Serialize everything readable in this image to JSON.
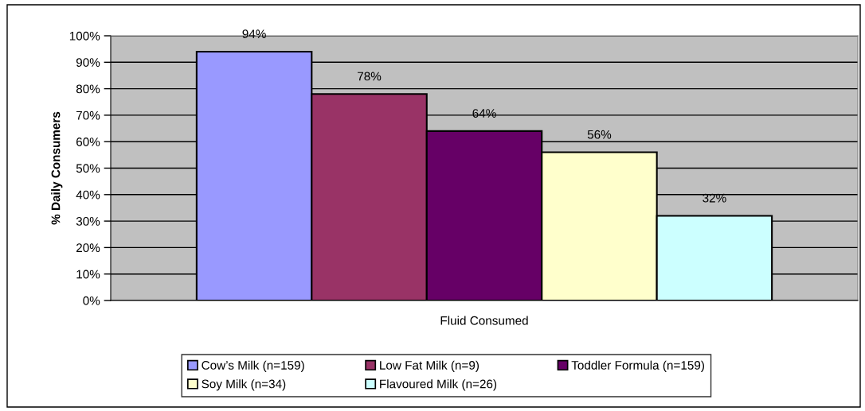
{
  "chart_data": {
    "type": "bar",
    "categories": [
      null
    ],
    "xlabel": "Fluid Consumed",
    "ylabel": "% Daily Consumers",
    "series": [
      {
        "name": "Cow’s Milk (n=159)",
        "color": "#9999ff",
        "values": [
          94
        ],
        "value_labels": [
          "94%"
        ]
      },
      {
        "name": "Low Fat Milk (n=9)",
        "color": "#993366",
        "values": [
          78
        ],
        "value_labels": [
          "78%"
        ]
      },
      {
        "name": "Toddler Formula (n=159)",
        "color": "#660066",
        "values": [
          64
        ],
        "value_labels": [
          "64%"
        ]
      },
      {
        "name": "Soy Milk (n=34)",
        "color": "#ffffcc",
        "values": [
          56
        ],
        "value_labels": [
          "56%"
        ]
      },
      {
        "name": "Flavoured Milk (n=26)",
        "color": "#ccffff",
        "values": [
          32
        ],
        "value_labels": [
          "32%"
        ]
      }
    ],
    "ylim": [
      0,
      100
    ],
    "yticks": [
      {
        "value": 0,
        "label": "0%"
      },
      {
        "value": 10,
        "label": "10%"
      },
      {
        "value": 20,
        "label": "20%"
      },
      {
        "value": 30,
        "label": "30%"
      },
      {
        "value": 40,
        "label": "40%"
      },
      {
        "value": 50,
        "label": "50%"
      },
      {
        "value": 60,
        "label": "60%"
      },
      {
        "value": 70,
        "label": "70%"
      },
      {
        "value": 80,
        "label": "80%"
      },
      {
        "value": 90,
        "label": "90%"
      },
      {
        "value": 100,
        "label": "100%"
      }
    ],
    "grid": "y",
    "legend": "bottom",
    "tick_labels": "y"
  }
}
